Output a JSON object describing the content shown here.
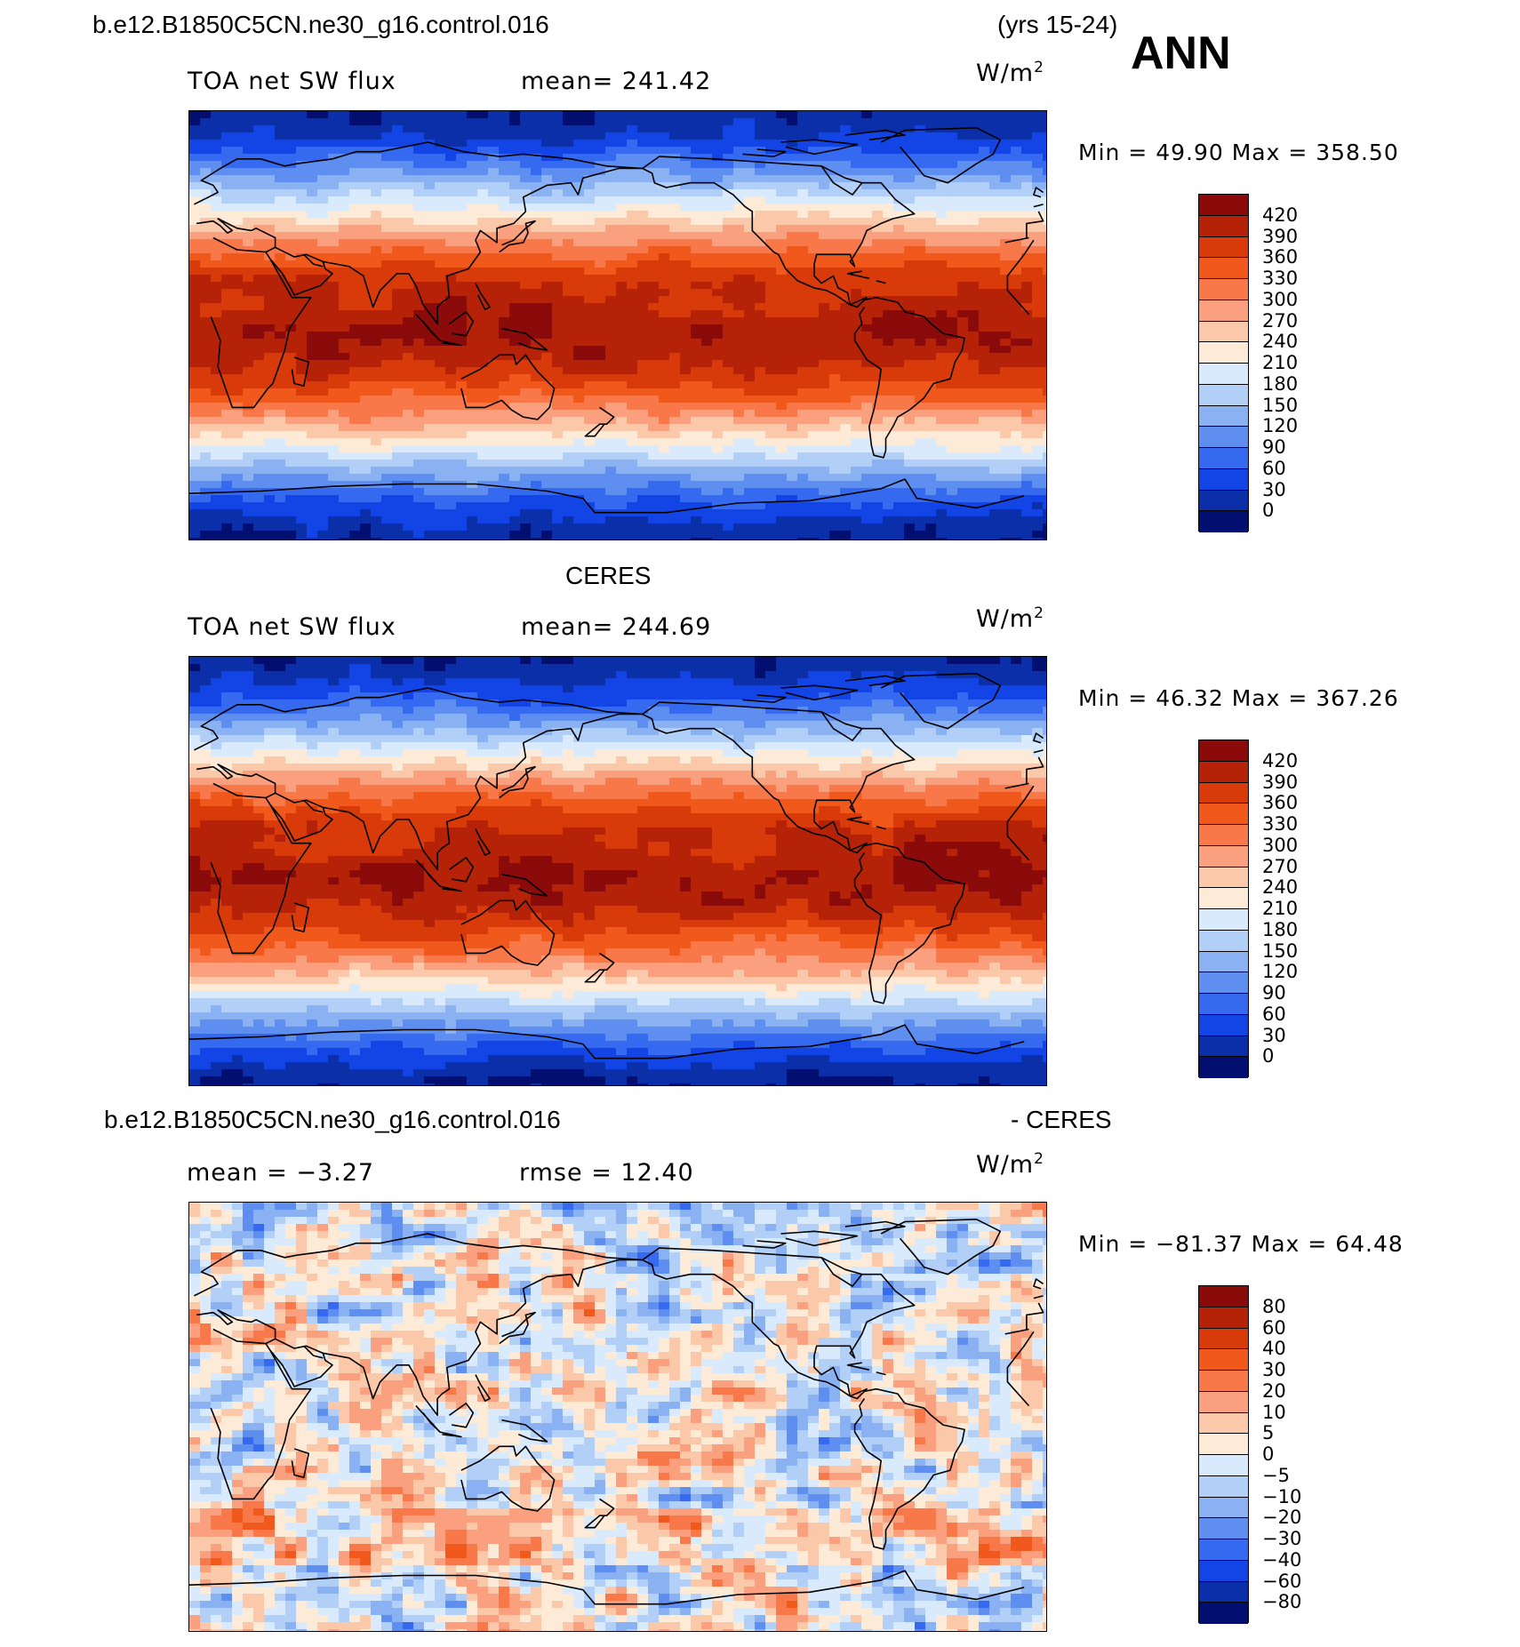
{
  "header": {
    "case_name": "b.e12.B1850C5CN.ne30_g16.control.016",
    "years": "(yrs 15-24)",
    "season": "ANN"
  },
  "panels": [
    {
      "id": "model",
      "title": "",
      "left_label": "TOA net SW flux",
      "center_label": "mean= 241.42",
      "units": "W/m",
      "units_sup": "2",
      "min_max": "Min =   49.90 Max = 358.50",
      "colorbar": {
        "levels": [
          "420",
          "390",
          "360",
          "330",
          "300",
          "270",
          "240",
          "210",
          "180",
          "150",
          "120",
          "90",
          "60",
          "30",
          "0"
        ],
        "colors": [
          "#8b0a0a",
          "#b52208",
          "#d83a0a",
          "#f0581c",
          "#f8784a",
          "#faa07e",
          "#fcc8aa",
          "#fdebd8",
          "#d8eafb",
          "#b2d0f7",
          "#8ab2f2",
          "#5e8ef0",
          "#356af0",
          "#1244e6",
          "#0a2fa8",
          "#020f70"
        ]
      },
      "features": "model"
    },
    {
      "id": "obs",
      "title": "CERES",
      "left_label": "TOA net SW flux",
      "center_label": "mean= 244.69",
      "units": "W/m",
      "units_sup": "2",
      "min_max": "Min =   46.32 Max = 367.26",
      "colorbar": {
        "levels": [
          "420",
          "390",
          "360",
          "330",
          "300",
          "270",
          "240",
          "210",
          "180",
          "150",
          "120",
          "90",
          "60",
          "30",
          "0"
        ],
        "colors": [
          "#8b0a0a",
          "#b52208",
          "#d83a0a",
          "#f0581c",
          "#f8784a",
          "#faa07e",
          "#fcc8aa",
          "#fdebd8",
          "#d8eafb",
          "#b2d0f7",
          "#8ab2f2",
          "#5e8ef0",
          "#356af0",
          "#1244e6",
          "#0a2fa8",
          "#020f70"
        ]
      },
      "features": "obs"
    },
    {
      "id": "diff",
      "title_left": "b.e12.B1850C5CN.ne30_g16.control.016",
      "title_right": "- CERES",
      "left_label": "mean =   −3.27",
      "center_label": "rmse =   12.40",
      "units": "W/m",
      "units_sup": "2",
      "min_max": "Min = −81.37 Max =   64.48",
      "colorbar": {
        "levels": [
          "80",
          "60",
          "40",
          "30",
          "20",
          "10",
          "5",
          "0",
          "−5",
          "−10",
          "−20",
          "−30",
          "−40",
          "−60",
          "−80"
        ],
        "colors": [
          "#8b0a0a",
          "#b52208",
          "#d83a0a",
          "#f0581c",
          "#f8784a",
          "#faa07e",
          "#fcc8aa",
          "#fdebd8",
          "#d8eafb",
          "#b2d0f7",
          "#8ab2f2",
          "#5e8ef0",
          "#356af0",
          "#1244e6",
          "#0a2fa8",
          "#020f70"
        ]
      },
      "features": "diff"
    }
  ]
}
